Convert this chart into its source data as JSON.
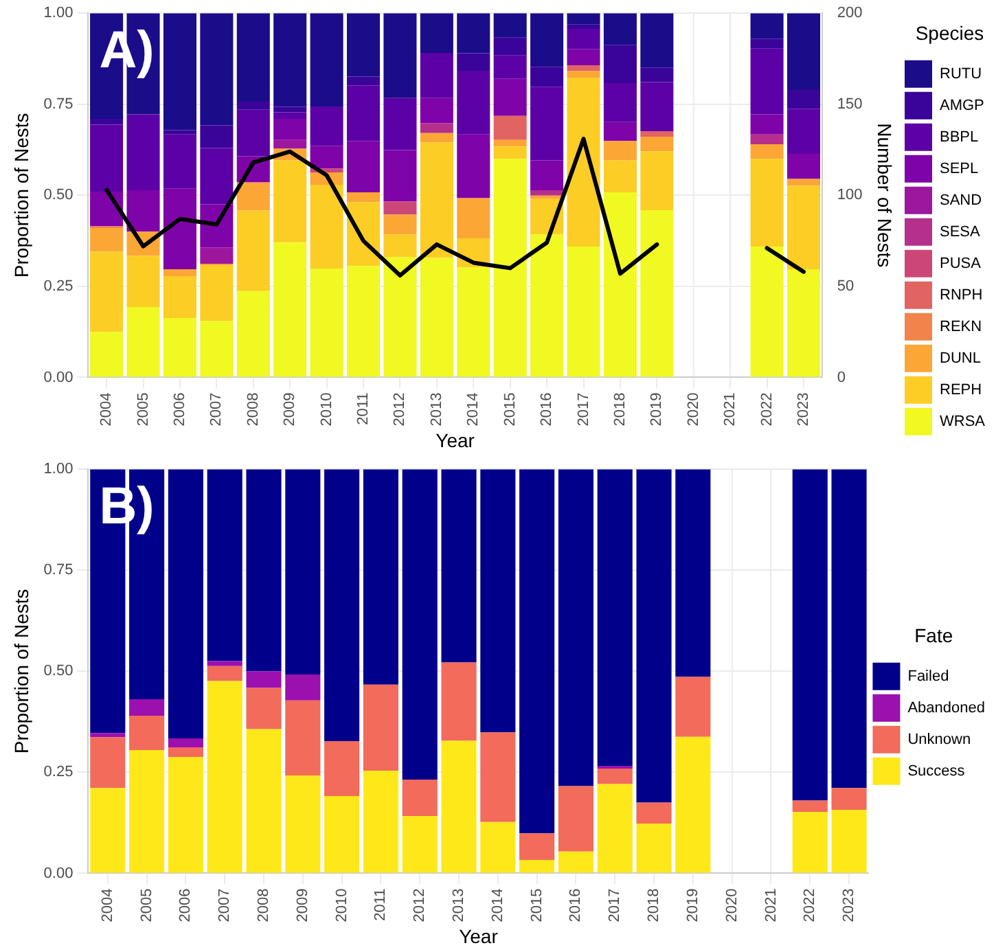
{
  "chart_data": [
    {
      "type": "bar",
      "stacked": true,
      "xlabel": "Year",
      "ylabel": "Proportion of Nests",
      "y2label": "Number of Nests",
      "legend_title": "Species",
      "legend": "right",
      "grid": true,
      "annotations": [
        "A)"
      ],
      "categories": [
        "2004",
        "2005",
        "2006",
        "2007",
        "2008",
        "2009",
        "2010",
        "2011",
        "2012",
        "2013",
        "2014",
        "2015",
        "2016",
        "2017",
        "2018",
        "2019",
        "2020",
        "2021",
        "2022",
        "2023"
      ],
      "ylim": [
        0,
        1
      ],
      "yticks": [
        {
          "value": 0,
          "label": "0.00"
        },
        {
          "value": 0.25,
          "label": "0.25"
        },
        {
          "value": 0.5,
          "label": "0.50"
        },
        {
          "value": 0.75,
          "label": "0.75"
        },
        {
          "value": 1,
          "label": "1.00"
        }
      ],
      "y2lim": [
        0,
        200
      ],
      "y2ticks": [
        0,
        50,
        100,
        150,
        200
      ],
      "series": [
        {
          "name": "WRSA",
          "color": "#f0f921",
          "values": [
            0.125,
            0.193,
            0.163,
            0.155,
            0.237,
            0.371,
            0.299,
            0.306,
            0.33,
            0.328,
            0.302,
            0.6,
            0.392,
            0.359,
            0.508,
            0.459,
            null,
            null,
            0.359,
            0.297
          ]
        },
        {
          "name": "REPH",
          "color": "#fccd25",
          "values": [
            0.22,
            0.141,
            0.115,
            0.153,
            0.221,
            0.225,
            0.23,
            0.175,
            0.062,
            0.317,
            0.08,
            0.034,
            0.098,
            0.464,
            0.088,
            0.162,
            null,
            null,
            0.241,
            0.229
          ]
        },
        {
          "name": "DUNL",
          "color": "#fca636",
          "values": [
            0.065,
            0.066,
            0.019,
            0.004,
            0.074,
            0.032,
            0.034,
            0.027,
            0.055,
            0.026,
            0.11,
            0.018,
            0.009,
            0.018,
            0.053,
            0.04,
            null,
            null,
            0.04,
            0.019
          ]
        },
        {
          "name": "REKN",
          "color": "#f2844b",
          "values": [
            0.005,
            0,
            0,
            0,
            0.004,
            0,
            0,
            0,
            0,
            0,
            0,
            0,
            0,
            0,
            0,
            0,
            null,
            null,
            0,
            0
          ]
        },
        {
          "name": "RNPH",
          "color": "#e16462",
          "values": [
            0,
            0,
            0,
            0,
            0,
            0,
            0,
            0,
            0,
            0,
            0,
            0.066,
            0,
            0.016,
            0,
            0.015,
            null,
            null,
            0,
            0
          ]
        },
        {
          "name": "PUSA",
          "color": "#cc4778",
          "values": [
            0,
            0,
            0,
            0,
            0,
            0,
            0.01,
            0,
            0.036,
            0,
            0,
            0,
            0,
            0,
            0,
            0,
            null,
            null,
            0,
            0
          ]
        },
        {
          "name": "SESA",
          "color": "#b52f8c",
          "values": [
            0,
            0,
            0,
            0,
            0,
            0,
            0,
            0,
            0,
            0.027,
            0,
            0,
            0.015,
            0,
            0,
            0,
            null,
            null,
            0.027,
            0
          ]
        },
        {
          "name": "SAND",
          "color": "#9c179e",
          "values": [
            0,
            0,
            0,
            0.045,
            0,
            0.024,
            0,
            0,
            0,
            0,
            0,
            0,
            0,
            0,
            0,
            0,
            null,
            null,
            0,
            0
          ]
        },
        {
          "name": "SEPL",
          "color": "#7e03a8",
          "values": [
            0.095,
            0.114,
            0.221,
            0.118,
            0.071,
            0.058,
            0.063,
            0.141,
            0.141,
            0.069,
            0.175,
            0.102,
            0.082,
            0.045,
            0.052,
            0,
            null,
            null,
            0.055,
            0.069
          ]
        },
        {
          "name": "BBPL",
          "color": "#5c01a6",
          "values": [
            0.184,
            0.208,
            0.149,
            0.155,
            0.128,
            0.018,
            0.108,
            0.153,
            0.143,
            0.124,
            0.175,
            0.064,
            0.202,
            0.055,
            0.107,
            0.135,
            null,
            null,
            0.181,
            0.124
          ]
        },
        {
          "name": "AMGP",
          "color": "#3a049a",
          "values": [
            0.016,
            0,
            0.012,
            0.062,
            0.022,
            0.015,
            0,
            0.024,
            0,
            0,
            0.048,
            0.049,
            0.055,
            0.012,
            0.104,
            0.04,
            null,
            null,
            0.027,
            0.051
          ]
        },
        {
          "name": "RUTU",
          "color": "#1b0c8a",
          "values": [
            0.29,
            0.278,
            0.321,
            0.308,
            0.243,
            0.257,
            0.256,
            0.174,
            0.233,
            0.109,
            0.11,
            0.067,
            0.147,
            0.031,
            0.088,
            0.149,
            null,
            null,
            0.07,
            0.211
          ]
        },
        {
          "type": "line",
          "axis": "y2",
          "color": "#000000",
          "values": [
            103,
            72,
            87,
            84,
            118,
            124,
            111,
            75,
            56,
            73,
            63,
            60,
            74,
            131,
            57,
            73,
            null,
            null,
            71,
            58
          ]
        }
      ]
    },
    {
      "type": "bar",
      "stacked": true,
      "xlabel": "Year",
      "ylabel": "Proportion of Nests",
      "legend_title": "Fate",
      "legend": "right",
      "grid": true,
      "annotations": [
        "B)"
      ],
      "categories": [
        "2004",
        "2005",
        "2006",
        "2007",
        "2008",
        "2009",
        "2010",
        "2011",
        "2012",
        "2013",
        "2014",
        "2015",
        "2016",
        "2017",
        "2018",
        "2019",
        "2020",
        "2021",
        "2022",
        "2023"
      ],
      "ylim": [
        0,
        1
      ],
      "yticks": [
        {
          "value": 0,
          "label": "0.00"
        },
        {
          "value": 0.25,
          "label": "0.25"
        },
        {
          "value": 0.5,
          "label": "0.50"
        },
        {
          "value": 0.75,
          "label": "0.75"
        },
        {
          "value": 1,
          "label": "1.00"
        }
      ],
      "series": [
        {
          "name": "Success",
          "color": "#ffe81a",
          "values": [
            0.211,
            0.305,
            0.288,
            0.476,
            0.357,
            0.242,
            0.191,
            0.254,
            0.142,
            0.328,
            0.127,
            0.033,
            0.054,
            0.221,
            0.123,
            0.338,
            null,
            null,
            0.152,
            0.157
          ]
        },
        {
          "name": "Unknown",
          "color": "#f26b5b",
          "values": [
            0.126,
            0.085,
            0.024,
            0.037,
            0.102,
            0.186,
            0.136,
            0.213,
            0.09,
            0.194,
            0.222,
            0.066,
            0.162,
            0.038,
            0.052,
            0.148,
            null,
            null,
            0.028,
            0.054
          ]
        },
        {
          "name": "Abandoned",
          "color": "#9b10ae",
          "values": [
            0.01,
            0.041,
            0.022,
            0.012,
            0.041,
            0.064,
            0,
            0,
            0,
            0,
            0,
            0,
            0,
            0.007,
            0,
            0,
            null,
            null,
            0,
            0
          ]
        },
        {
          "name": "Failed",
          "color": "#00008b",
          "values": [
            0.653,
            0.569,
            0.666,
            0.475,
            0.5,
            0.508,
            0.673,
            0.533,
            0.768,
            0.478,
            0.651,
            0.901,
            0.784,
            0.734,
            0.825,
            0.514,
            null,
            null,
            0.82,
            0.789
          ]
        }
      ]
    }
  ]
}
